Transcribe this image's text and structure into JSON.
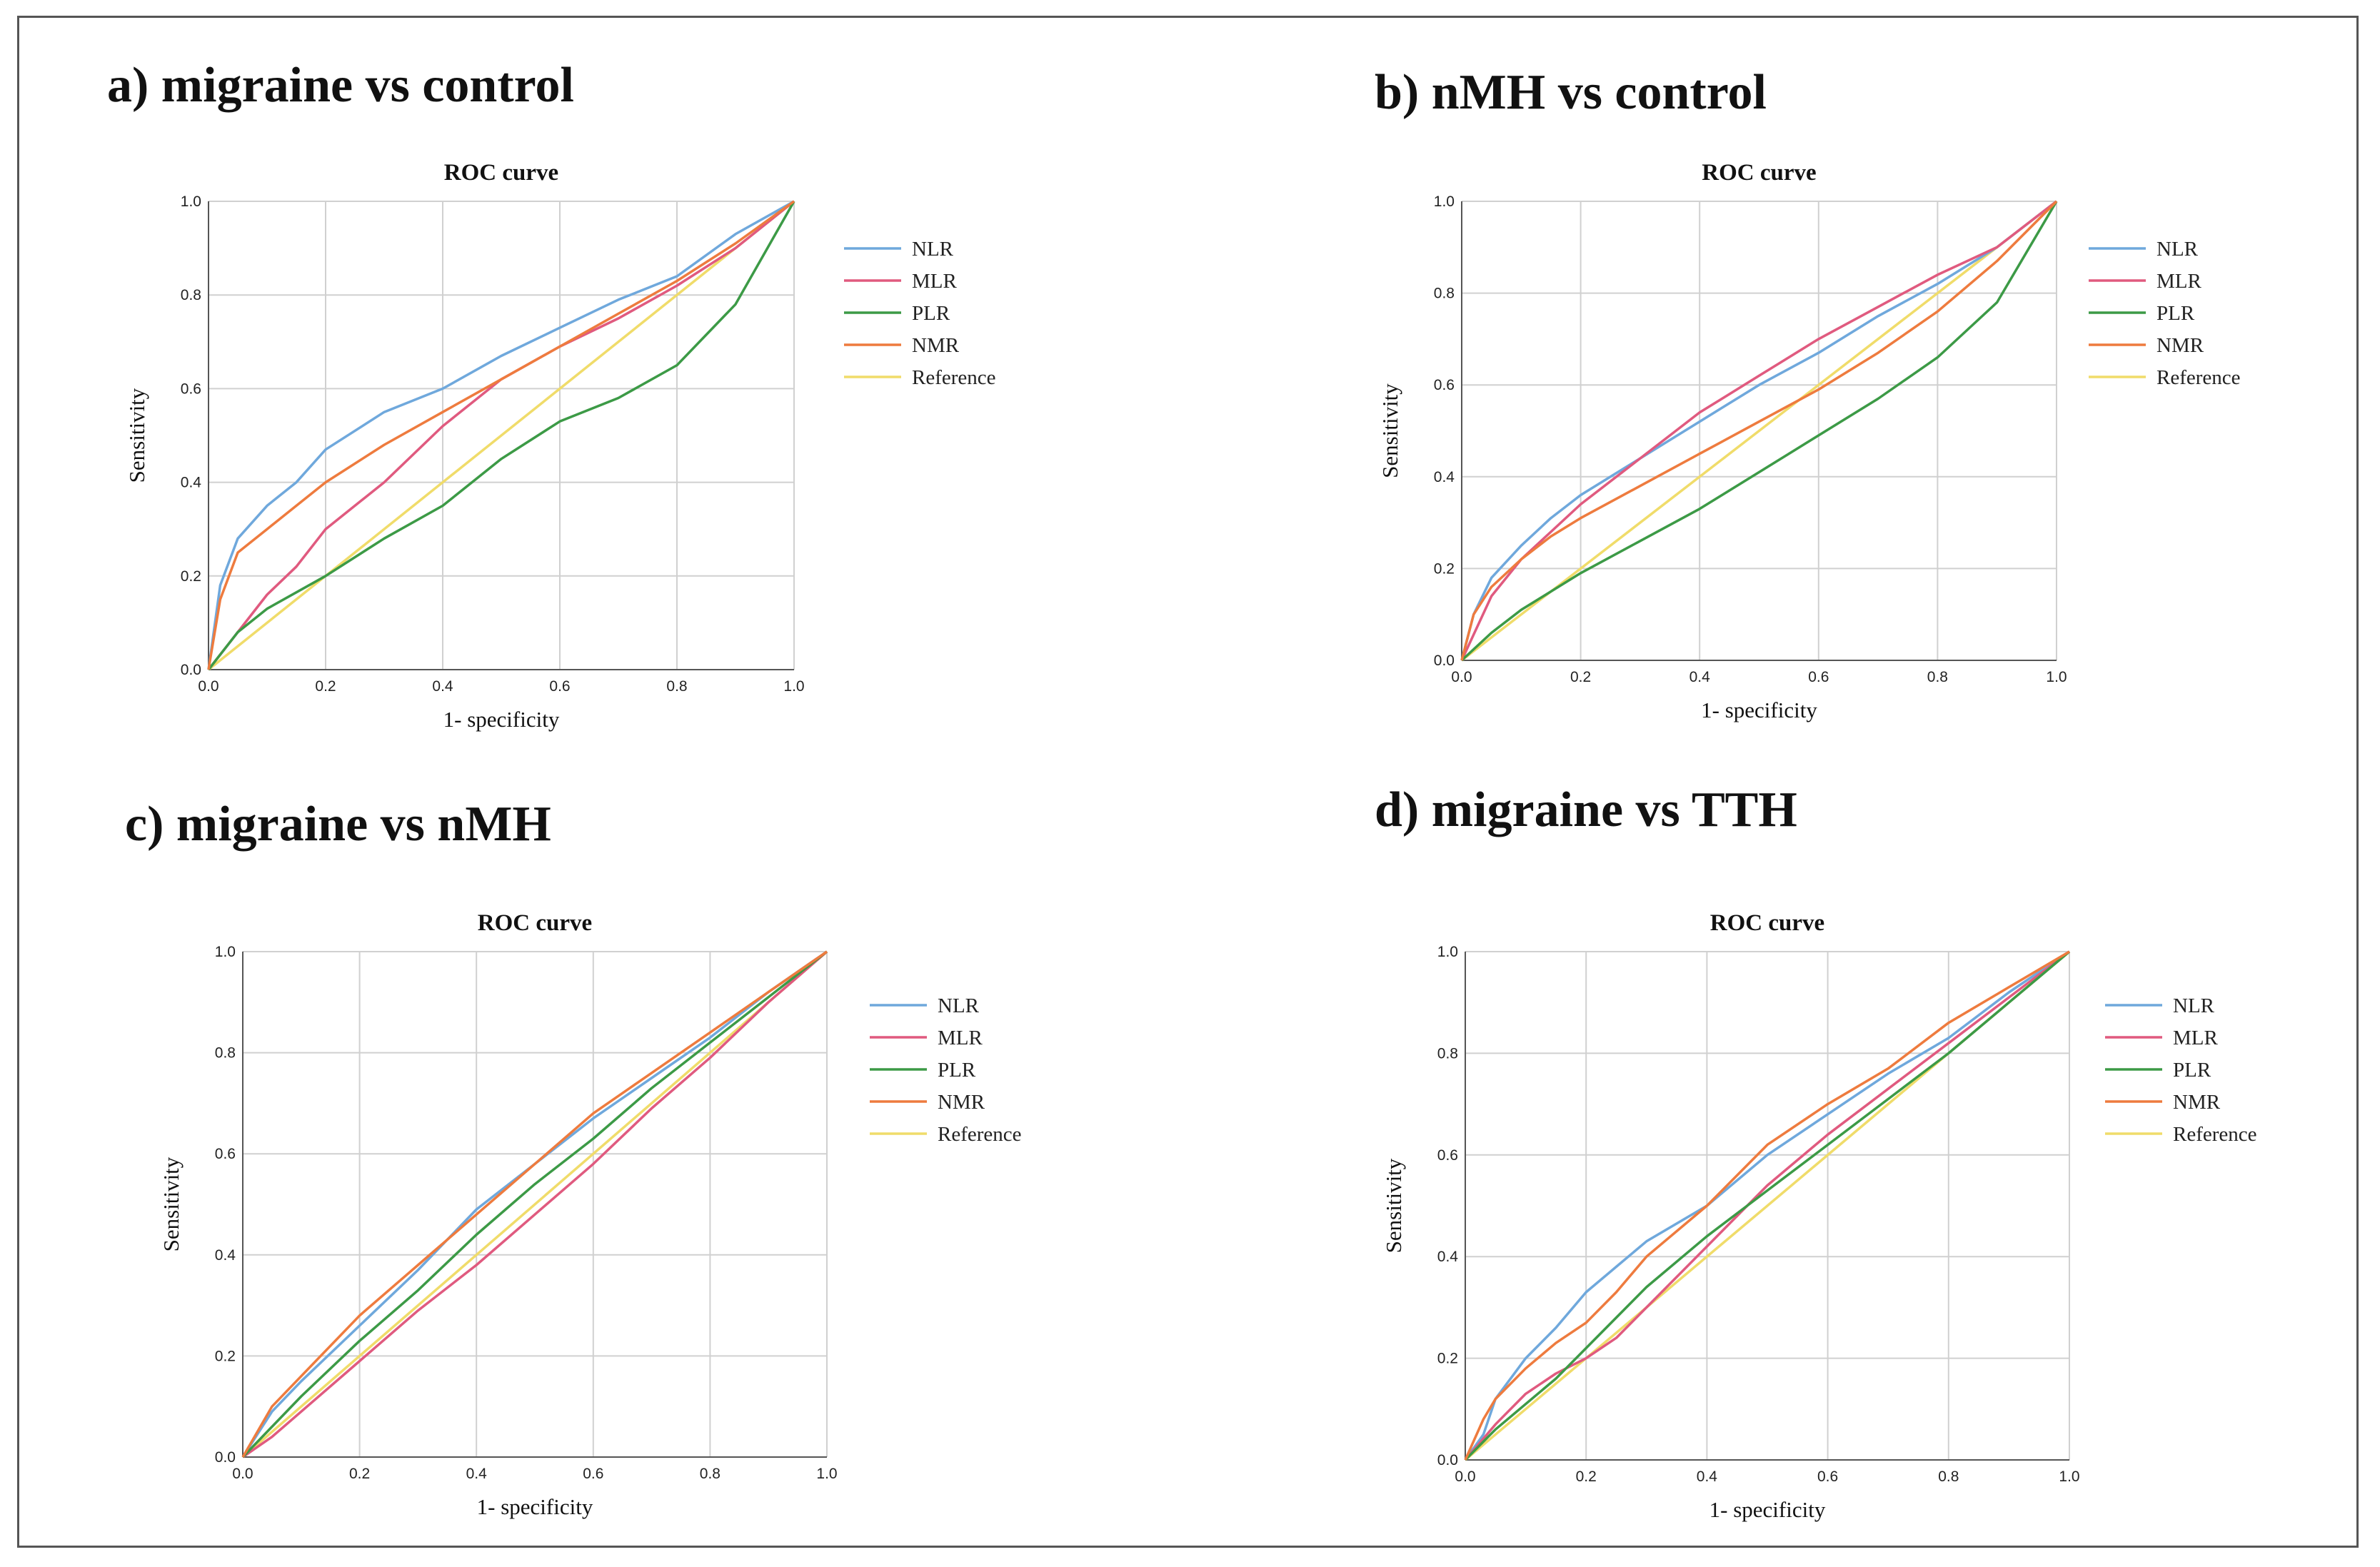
{
  "panels": [
    {
      "heading": "a) migraine vs control",
      "chart_data": {
        "type": "line",
        "title": "ROC curve",
        "xlabel": "1- specificity",
        "ylabel": "Sensitivity",
        "xlim": [
          0,
          1
        ],
        "ylim": [
          0,
          1
        ],
        "xticks": [
          "0.0",
          "0.2",
          "0.4",
          "0.6",
          "0.8",
          "1.0"
        ],
        "yticks": [
          "0.0",
          "0.2",
          "0.4",
          "0.6",
          "0.8",
          "1.0"
        ],
        "grid": true,
        "legend_position": "right",
        "series": [
          {
            "name": "NLR",
            "color": "#6fa8dc",
            "x": [
              0,
              0.02,
              0.05,
              0.1,
              0.15,
              0.2,
              0.3,
              0.4,
              0.5,
              0.6,
              0.7,
              0.8,
              0.9,
              1
            ],
            "y": [
              0,
              0.18,
              0.28,
              0.35,
              0.4,
              0.47,
              0.55,
              0.6,
              0.67,
              0.73,
              0.79,
              0.84,
              0.93,
              1
            ]
          },
          {
            "name": "MLR",
            "color": "#e05a7f",
            "x": [
              0,
              0.05,
              0.1,
              0.15,
              0.2,
              0.3,
              0.4,
              0.5,
              0.6,
              0.7,
              0.8,
              0.9,
              1
            ],
            "y": [
              0,
              0.08,
              0.16,
              0.22,
              0.3,
              0.4,
              0.52,
              0.62,
              0.69,
              0.75,
              0.82,
              0.9,
              1
            ]
          },
          {
            "name": "PLR",
            "color": "#3c9a46",
            "x": [
              0,
              0.05,
              0.1,
              0.2,
              0.3,
              0.4,
              0.5,
              0.6,
              0.7,
              0.8,
              0.9,
              1
            ],
            "y": [
              0,
              0.08,
              0.13,
              0.2,
              0.28,
              0.35,
              0.45,
              0.53,
              0.58,
              0.65,
              0.78,
              1
            ]
          },
          {
            "name": "NMR",
            "color": "#ee7b3e",
            "x": [
              0,
              0.02,
              0.05,
              0.1,
              0.15,
              0.2,
              0.3,
              0.4,
              0.5,
              0.6,
              0.7,
              0.8,
              0.9,
              1
            ],
            "y": [
              0,
              0.15,
              0.25,
              0.3,
              0.35,
              0.4,
              0.48,
              0.55,
              0.62,
              0.69,
              0.76,
              0.83,
              0.91,
              1
            ]
          },
          {
            "name": "Reference",
            "color": "#f0dc6a",
            "x": [
              0,
              1
            ],
            "y": [
              0,
              1
            ]
          }
        ]
      }
    },
    {
      "heading": "b) nMH vs control",
      "chart_data": {
        "type": "line",
        "title": "ROC curve",
        "xlabel": "1- specificity",
        "ylabel": "Sensitivity",
        "xlim": [
          0,
          1
        ],
        "ylim": [
          0,
          1
        ],
        "xticks": [
          "0.0",
          "0.2",
          "0.4",
          "0.6",
          "0.8",
          "1.0"
        ],
        "yticks": [
          "0.0",
          "0.2",
          "0.4",
          "0.6",
          "0.8",
          "1.0"
        ],
        "grid": true,
        "legend_position": "right",
        "series": [
          {
            "name": "NLR",
            "color": "#6fa8dc",
            "x": [
              0,
              0.02,
              0.05,
              0.1,
              0.15,
              0.2,
              0.3,
              0.4,
              0.5,
              0.6,
              0.7,
              0.8,
              0.9,
              1
            ],
            "y": [
              0,
              0.1,
              0.18,
              0.25,
              0.31,
              0.36,
              0.44,
              0.52,
              0.6,
              0.67,
              0.75,
              0.82,
              0.9,
              1
            ]
          },
          {
            "name": "MLR",
            "color": "#e05a7f",
            "x": [
              0,
              0.05,
              0.1,
              0.15,
              0.2,
              0.3,
              0.4,
              0.5,
              0.6,
              0.7,
              0.8,
              0.9,
              1
            ],
            "y": [
              0,
              0.14,
              0.22,
              0.28,
              0.34,
              0.44,
              0.54,
              0.62,
              0.7,
              0.77,
              0.84,
              0.9,
              1
            ]
          },
          {
            "name": "PLR",
            "color": "#3c9a46",
            "x": [
              0,
              0.05,
              0.1,
              0.2,
              0.3,
              0.4,
              0.5,
              0.6,
              0.7,
              0.8,
              0.9,
              1
            ],
            "y": [
              0,
              0.06,
              0.11,
              0.19,
              0.26,
              0.33,
              0.41,
              0.49,
              0.57,
              0.66,
              0.78,
              1
            ]
          },
          {
            "name": "NMR",
            "color": "#ee7b3e",
            "x": [
              0,
              0.02,
              0.05,
              0.1,
              0.15,
              0.2,
              0.3,
              0.4,
              0.5,
              0.6,
              0.7,
              0.8,
              0.9,
              1
            ],
            "y": [
              0,
              0.1,
              0.16,
              0.22,
              0.27,
              0.31,
              0.38,
              0.45,
              0.52,
              0.59,
              0.67,
              0.76,
              0.87,
              1
            ]
          },
          {
            "name": "Reference",
            "color": "#f0dc6a",
            "x": [
              0,
              1
            ],
            "y": [
              0,
              1
            ]
          }
        ]
      }
    },
    {
      "heading": "c) migraine vs nMH",
      "chart_data": {
        "type": "line",
        "title": "ROC curve",
        "xlabel": "1- specificity",
        "ylabel": "Sensitivity",
        "xlim": [
          0,
          1
        ],
        "ylim": [
          0,
          1
        ],
        "xticks": [
          "0.0",
          "0.2",
          "0.4",
          "0.6",
          "0.8",
          "1.0"
        ],
        "yticks": [
          "0.0",
          "0.2",
          "0.4",
          "0.6",
          "0.8",
          "1.0"
        ],
        "grid": true,
        "legend_position": "right",
        "series": [
          {
            "name": "NLR",
            "color": "#6fa8dc",
            "x": [
              0,
              0.05,
              0.1,
              0.2,
              0.3,
              0.4,
              0.5,
              0.6,
              0.7,
              0.8,
              0.9,
              1
            ],
            "y": [
              0,
              0.09,
              0.15,
              0.26,
              0.37,
              0.49,
              0.58,
              0.67,
              0.75,
              0.83,
              0.92,
              1
            ]
          },
          {
            "name": "MLR",
            "color": "#e05a7f",
            "x": [
              0,
              0.05,
              0.1,
              0.2,
              0.3,
              0.4,
              0.5,
              0.6,
              0.7,
              0.8,
              0.9,
              1
            ],
            "y": [
              0,
              0.04,
              0.09,
              0.19,
              0.29,
              0.38,
              0.48,
              0.58,
              0.69,
              0.79,
              0.9,
              1
            ]
          },
          {
            "name": "PLR",
            "color": "#3c9a46",
            "x": [
              0,
              0.05,
              0.1,
              0.2,
              0.3,
              0.4,
              0.5,
              0.6,
              0.7,
              0.8,
              0.9,
              1
            ],
            "y": [
              0,
              0.06,
              0.12,
              0.23,
              0.33,
              0.44,
              0.54,
              0.63,
              0.73,
              0.82,
              0.91,
              1
            ]
          },
          {
            "name": "NMR",
            "color": "#ee7b3e",
            "x": [
              0,
              0.05,
              0.1,
              0.2,
              0.3,
              0.4,
              0.5,
              0.6,
              0.7,
              0.8,
              0.9,
              1
            ],
            "y": [
              0,
              0.1,
              0.16,
              0.28,
              0.38,
              0.48,
              0.58,
              0.68,
              0.76,
              0.84,
              0.92,
              1
            ]
          },
          {
            "name": "Reference",
            "color": "#f0dc6a",
            "x": [
              0,
              1
            ],
            "y": [
              0,
              1
            ]
          }
        ]
      }
    },
    {
      "heading": "d) migraine vs TTH",
      "chart_data": {
        "type": "line",
        "title": "ROC curve",
        "xlabel": "1- specificity",
        "ylabel": "Sensitivity",
        "xlim": [
          0,
          1
        ],
        "ylim": [
          0,
          1
        ],
        "xticks": [
          "0.0",
          "0.2",
          "0.4",
          "0.6",
          "0.8",
          "1.0"
        ],
        "yticks": [
          "0.0",
          "0.2",
          "0.4",
          "0.6",
          "0.8",
          "1.0"
        ],
        "grid": true,
        "legend_position": "right",
        "series": [
          {
            "name": "NLR",
            "color": "#6fa8dc",
            "x": [
              0,
              0.03,
              0.05,
              0.1,
              0.15,
              0.2,
              0.25,
              0.3,
              0.4,
              0.5,
              0.6,
              0.7,
              0.8,
              0.9,
              1
            ],
            "y": [
              0,
              0.05,
              0.12,
              0.2,
              0.26,
              0.33,
              0.38,
              0.43,
              0.5,
              0.6,
              0.68,
              0.76,
              0.83,
              0.92,
              1
            ]
          },
          {
            "name": "MLR",
            "color": "#e05a7f",
            "x": [
              0,
              0.05,
              0.1,
              0.15,
              0.2,
              0.25,
              0.3,
              0.4,
              0.5,
              0.6,
              0.7,
              0.8,
              0.9,
              1
            ],
            "y": [
              0,
              0.07,
              0.13,
              0.17,
              0.2,
              0.24,
              0.3,
              0.42,
              0.54,
              0.64,
              0.73,
              0.82,
              0.91,
              1
            ]
          },
          {
            "name": "PLR",
            "color": "#3c9a46",
            "x": [
              0,
              0.05,
              0.1,
              0.15,
              0.2,
              0.25,
              0.3,
              0.4,
              0.5,
              0.6,
              0.7,
              0.8,
              0.9,
              1
            ],
            "y": [
              0,
              0.06,
              0.11,
              0.16,
              0.22,
              0.28,
              0.34,
              0.44,
              0.53,
              0.62,
              0.71,
              0.8,
              0.9,
              1
            ]
          },
          {
            "name": "NMR",
            "color": "#ee7b3e",
            "x": [
              0,
              0.03,
              0.05,
              0.1,
              0.15,
              0.2,
              0.25,
              0.3,
              0.4,
              0.5,
              0.6,
              0.7,
              0.8,
              0.9,
              1
            ],
            "y": [
              0,
              0.08,
              0.12,
              0.18,
              0.23,
              0.27,
              0.33,
              0.4,
              0.5,
              0.62,
              0.7,
              0.77,
              0.86,
              0.93,
              1
            ]
          },
          {
            "name": "Reference",
            "color": "#f0dc6a",
            "x": [
              0,
              1
            ],
            "y": [
              0,
              1
            ]
          }
        ]
      }
    }
  ]
}
